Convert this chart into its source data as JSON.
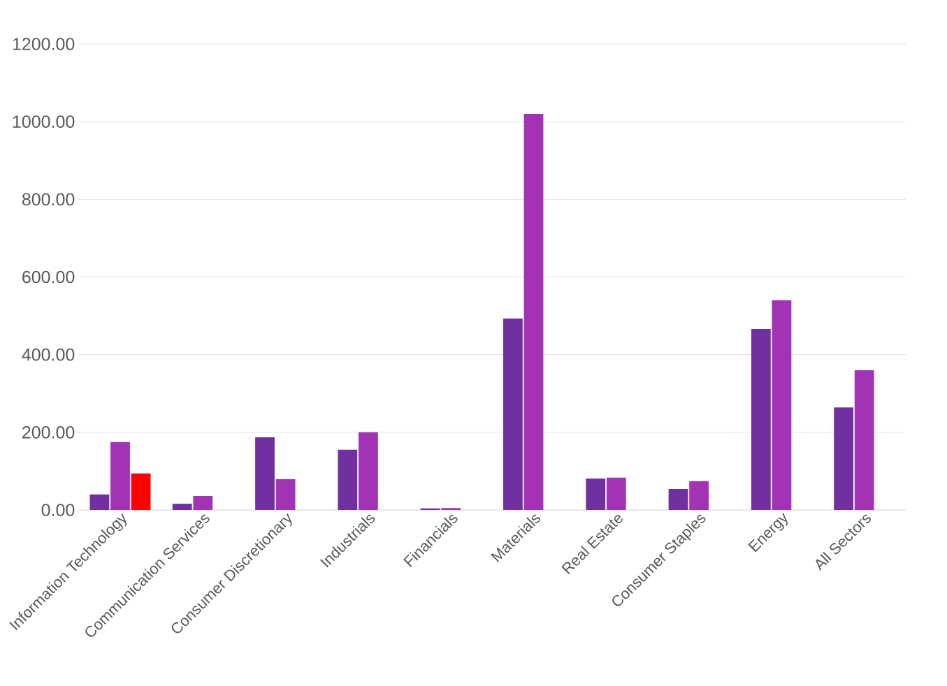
{
  "chart_data": {
    "type": "bar",
    "categories": [
      "Information Technology",
      "Communication Services",
      "Consumer Discretionary",
      "Industrials",
      "Financials",
      "Materials",
      "Real Estate",
      "Consumer Staples",
      "Energy",
      "All Sectors"
    ],
    "series": [
      {
        "color": "#7030a0",
        "values": [
          40,
          16,
          187,
          155,
          4,
          493,
          81,
          54,
          466,
          264
        ]
      },
      {
        "color": "#a333b5",
        "values": [
          175,
          36,
          79,
          200,
          5,
          1020,
          83,
          74,
          540,
          360
        ]
      },
      {
        "color": "#ff0000",
        "values": [
          94,
          null,
          null,
          null,
          null,
          null,
          null,
          null,
          null,
          null
        ]
      }
    ],
    "ylim": [
      0,
      1200
    ],
    "yticks": [
      {
        "value": 0,
        "label": "0.00"
      },
      {
        "value": 200,
        "label": "200.00"
      },
      {
        "value": 400,
        "label": "400.00"
      },
      {
        "value": 600,
        "label": "600.00"
      },
      {
        "value": 800,
        "label": "800.00"
      },
      {
        "value": 1000,
        "label": "1000.00"
      },
      {
        "value": 1200,
        "label": "1200.00"
      }
    ],
    "grid": "y"
  }
}
